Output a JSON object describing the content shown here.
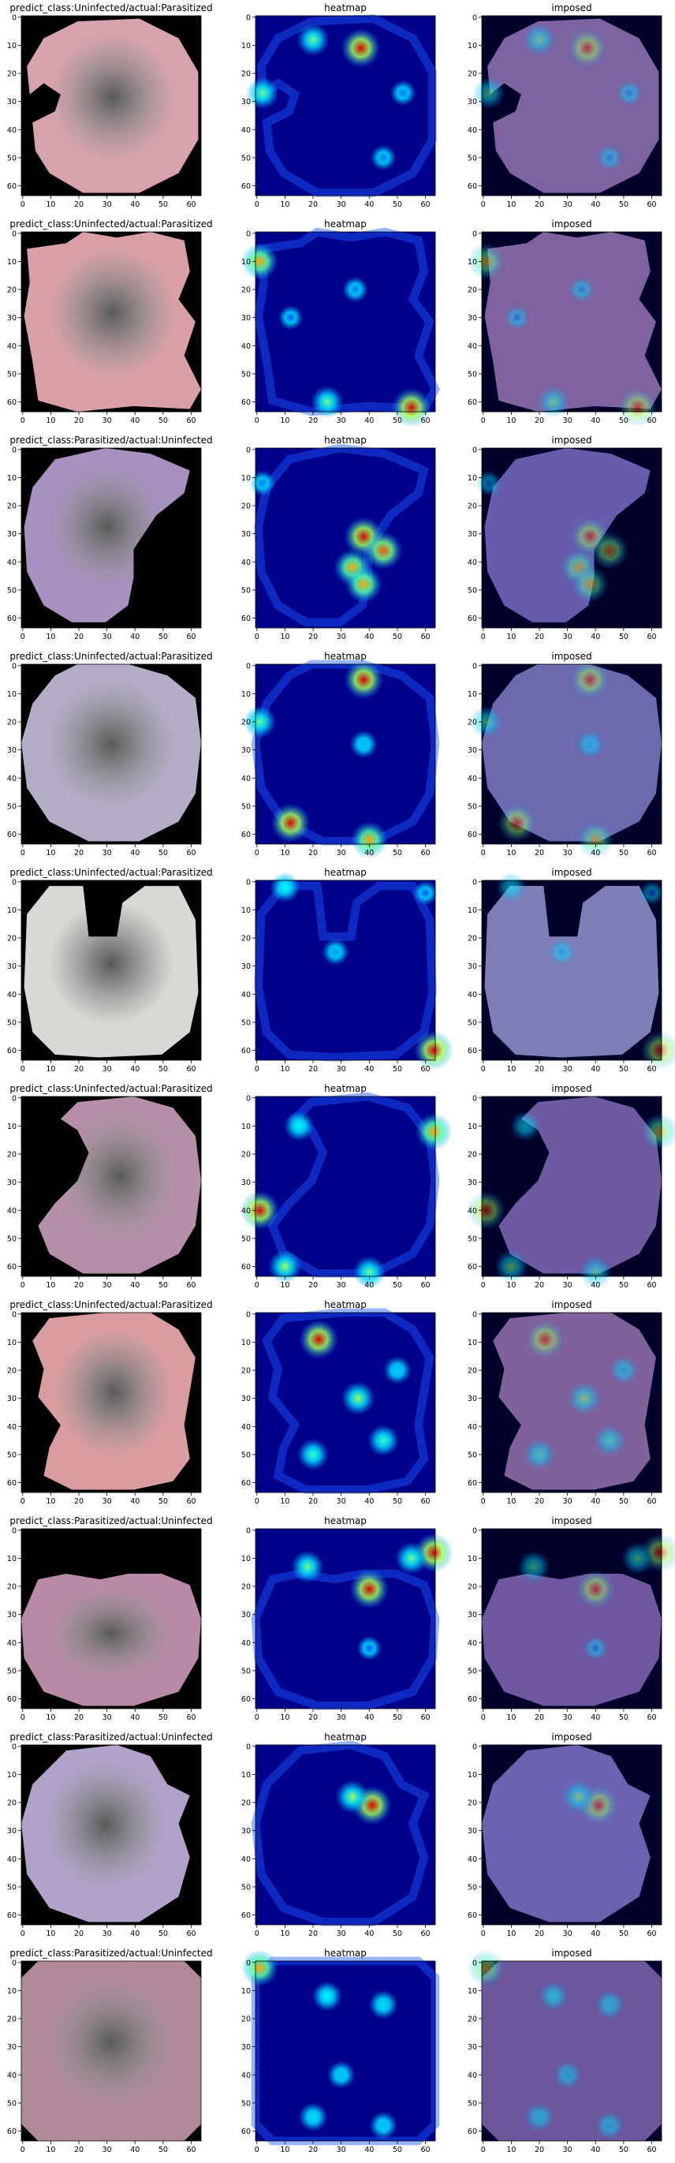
{
  "figure": {
    "column_titles": [
      "heatmap",
      "imposed"
    ],
    "tick_labels": [
      "0",
      "10",
      "20",
      "30",
      "40",
      "50",
      "60"
    ],
    "tick_values": [
      0,
      10,
      20,
      30,
      40,
      50,
      60
    ],
    "axis_range": [
      0,
      64
    ],
    "colors": {
      "background_black": "#000000",
      "heatmap_base": "#00008b",
      "heatmap_mid": "#00ffff",
      "heatmap_hot": "#ff0000",
      "cell_pink": "#d9a0a8",
      "cell_purple": "#9a7bb0",
      "cell_grey": "#d8d8d4"
    }
  },
  "rows": [
    {
      "title": "predict_class:Uninfected/actual:Parasitized",
      "cell_color": "#d6a2ab",
      "shape": "notched-left",
      "hotspots": [
        {
          "x": 37,
          "y": 11,
          "intensity": 1.0
        },
        {
          "x": 20,
          "y": 8,
          "intensity": 0.7
        },
        {
          "x": 2,
          "y": 27,
          "intensity": 0.7
        },
        {
          "x": 52,
          "y": 27,
          "intensity": 0.4
        },
        {
          "x": 45,
          "y": 50,
          "intensity": 0.4
        }
      ]
    },
    {
      "title": "predict_class:Uninfected/actual:Parasitized",
      "cell_color": "#d9a0a6",
      "shape": "irregular",
      "hotspots": [
        {
          "x": 1,
          "y": 10,
          "intensity": 0.9
        },
        {
          "x": 55,
          "y": 62,
          "intensity": 1.0
        },
        {
          "x": 25,
          "y": 60,
          "intensity": 0.7
        },
        {
          "x": 35,
          "y": 20,
          "intensity": 0.4
        },
        {
          "x": 12,
          "y": 30,
          "intensity": 0.35
        }
      ]
    },
    {
      "title": "predict_class:Parasitized/actual:Uninfected",
      "cell_color": "#a890c0",
      "shape": "crescent-right",
      "hotspots": [
        {
          "x": 38,
          "y": 31,
          "intensity": 1.0
        },
        {
          "x": 45,
          "y": 36,
          "intensity": 0.95
        },
        {
          "x": 34,
          "y": 42,
          "intensity": 0.9
        },
        {
          "x": 38,
          "y": 48,
          "intensity": 0.9
        },
        {
          "x": 2,
          "y": 12,
          "intensity": 0.4
        }
      ]
    },
    {
      "title": "predict_class:Uninfected/actual:Parasitized",
      "cell_color": "#b4acc6",
      "shape": "round",
      "hotspots": [
        {
          "x": 38,
          "y": 5,
          "intensity": 1.0
        },
        {
          "x": 12,
          "y": 56,
          "intensity": 1.0
        },
        {
          "x": 40,
          "y": 62,
          "intensity": 0.9
        },
        {
          "x": 1,
          "y": 20,
          "intensity": 0.7
        },
        {
          "x": 38,
          "y": 28,
          "intensity": 0.5
        }
      ]
    },
    {
      "title": "predict_class:Uninfected/actual:Parasitized",
      "cell_color": "#d8d8d4",
      "shape": "notched-top",
      "hotspots": [
        {
          "x": 63,
          "y": 60,
          "intensity": 1.0
        },
        {
          "x": 10,
          "y": 2,
          "intensity": 0.6
        },
        {
          "x": 28,
          "y": 25,
          "intensity": 0.45
        },
        {
          "x": 60,
          "y": 4,
          "intensity": 0.35
        }
      ]
    },
    {
      "title": "predict_class:Uninfected/actual:Parasitized",
      "cell_color": "#b58fa8",
      "shape": "bite-left",
      "hotspots": [
        {
          "x": 1,
          "y": 40,
          "intensity": 1.0
        },
        {
          "x": 63,
          "y": 12,
          "intensity": 0.9
        },
        {
          "x": 10,
          "y": 60,
          "intensity": 0.75
        },
        {
          "x": 40,
          "y": 62,
          "intensity": 0.7
        },
        {
          "x": 15,
          "y": 10,
          "intensity": 0.6
        }
      ]
    },
    {
      "title": "predict_class:Uninfected/actual:Parasitized",
      "cell_color": "#d99c9f",
      "shape": "rect-cell",
      "hotspots": [
        {
          "x": 22,
          "y": 9,
          "intensity": 1.0
        },
        {
          "x": 36,
          "y": 30,
          "intensity": 0.75
        },
        {
          "x": 20,
          "y": 50,
          "intensity": 0.65
        },
        {
          "x": 45,
          "y": 45,
          "intensity": 0.65
        },
        {
          "x": 50,
          "y": 20,
          "intensity": 0.5
        }
      ]
    },
    {
      "title": "predict_class:Parasitized/actual:Uninfected",
      "cell_color": "#b98aa6",
      "shape": "fruit",
      "hotspots": [
        {
          "x": 40,
          "y": 21,
          "intensity": 1.0
        },
        {
          "x": 63,
          "y": 8,
          "intensity": 1.0
        },
        {
          "x": 18,
          "y": 13,
          "intensity": 0.7
        },
        {
          "x": 55,
          "y": 10,
          "intensity": 0.7
        },
        {
          "x": 40,
          "y": 42,
          "intensity": 0.35
        }
      ]
    },
    {
      "title": "predict_class:Parasitized/actual:Uninfected",
      "cell_color": "#b0a2c8",
      "shape": "round-small",
      "hotspots": [
        {
          "x": 41,
          "y": 21,
          "intensity": 1.0
        },
        {
          "x": 34,
          "y": 18,
          "intensity": 0.75
        }
      ]
    },
    {
      "title": "predict_class:Parasitized/actual:Uninfected",
      "cell_color": "#b0889c",
      "shape": "rect-large",
      "hotspots": [
        {
          "x": 1,
          "y": 2,
          "intensity": 0.9
        },
        {
          "x": 25,
          "y": 12,
          "intensity": 0.6
        },
        {
          "x": 45,
          "y": 15,
          "intensity": 0.55
        },
        {
          "x": 30,
          "y": 40,
          "intensity": 0.5
        },
        {
          "x": 20,
          "y": 55,
          "intensity": 0.55
        },
        {
          "x": 45,
          "y": 58,
          "intensity": 0.5
        }
      ]
    }
  ]
}
